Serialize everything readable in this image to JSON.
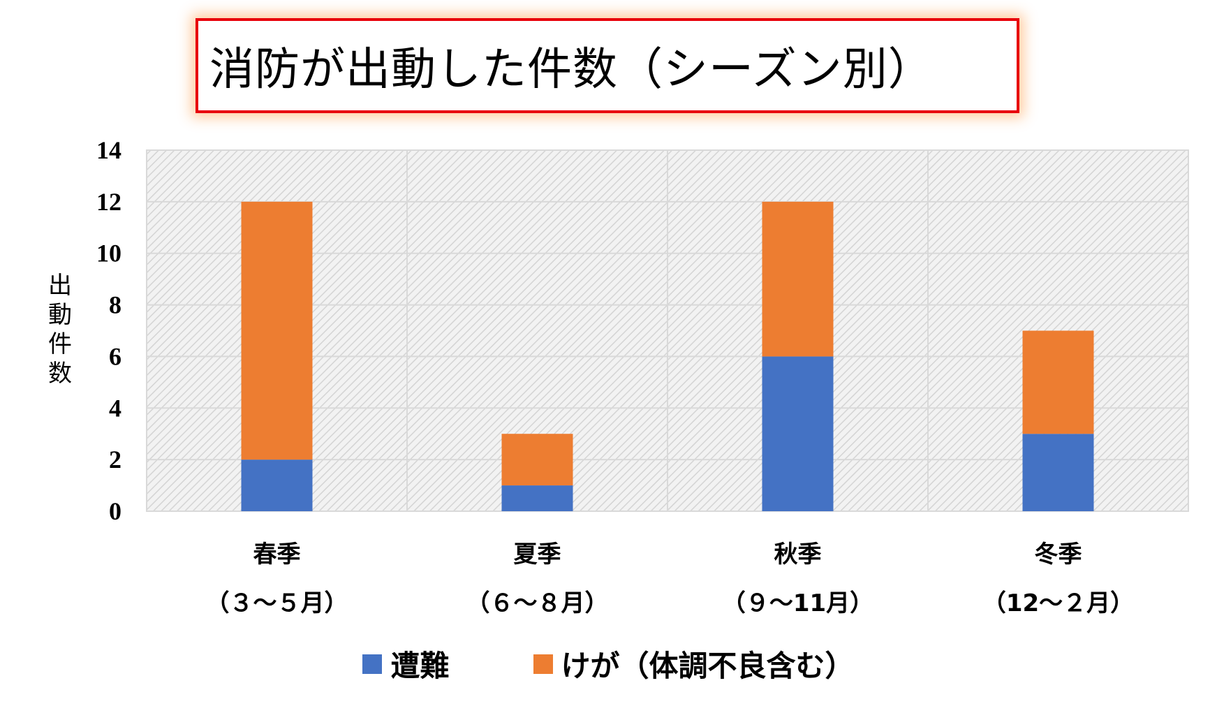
{
  "title": "消防が出動した件数（シーズン別）",
  "colors": {
    "series_1": "#4472c4",
    "series_2": "#ed7d31",
    "title_border": "#e8000b"
  },
  "chart_data": {
    "type": "bar",
    "stacked": true,
    "title": "消防が出動した件数（シーズン別）",
    "xlabel": "",
    "ylabel": "出動件数",
    "ylim": [
      0,
      14
    ],
    "yticks": [
      "0",
      "2",
      "4",
      "6",
      "8",
      "10",
      "12",
      "14"
    ],
    "grid": true,
    "legend_position": "bottom",
    "categories": [
      {
        "name": "春季",
        "range": "（３～５月）"
      },
      {
        "name": "夏季",
        "range": "（６～８月）"
      },
      {
        "name": "秋季",
        "range": "（９～11月）"
      },
      {
        "name": "冬季",
        "range": "（12～２月）"
      }
    ],
    "series": [
      {
        "name": "遭難",
        "values": [
          2,
          1,
          6,
          3
        ]
      },
      {
        "name": "けが（体調不良含む）",
        "values": [
          10,
          2,
          6,
          4
        ]
      }
    ]
  }
}
